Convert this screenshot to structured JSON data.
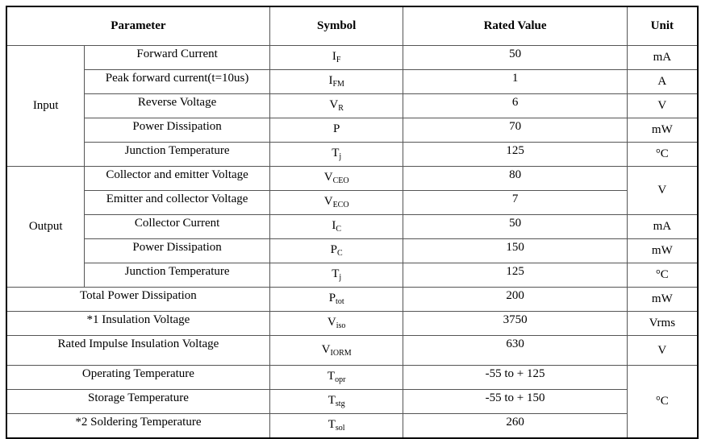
{
  "headers": {
    "parameter": "Parameter",
    "symbol": "Symbol",
    "rated_value": "Rated Value",
    "unit": "Unit"
  },
  "groups": {
    "input": "Input",
    "output": "Output"
  },
  "rows": [
    {
      "param": "Forward Current",
      "sym": "I",
      "sub": "F",
      "value": "50",
      "unit": "mA"
    },
    {
      "param": "Peak forward current(t=10us)",
      "sym": "I",
      "sub": "FM",
      "value": "1",
      "unit": "A"
    },
    {
      "param": "Reverse Voltage",
      "sym": "V",
      "sub": "R",
      "value": "6",
      "unit": "V"
    },
    {
      "param": "Power Dissipation",
      "sym": "P",
      "sub": "",
      "value": "70",
      "unit": "mW"
    },
    {
      "param": "Junction Temperature",
      "sym": "T",
      "sub": "j",
      "value": "125",
      "unit": "°C"
    },
    {
      "param": "Collector and emitter Voltage",
      "sym": "V",
      "sub": "CEO",
      "value": "80",
      "unit": "V"
    },
    {
      "param": "Emitter and collector Voltage",
      "sym": "V",
      "sub": "ECO",
      "value": "7",
      "unit": ""
    },
    {
      "param": "Collector Current",
      "sym": "I",
      "sub": "C",
      "value": "50",
      "unit": "mA"
    },
    {
      "param": "Power Dissipation",
      "sym": "P",
      "sub": "C",
      "value": "150",
      "unit": "mW"
    },
    {
      "param": "Junction Temperature",
      "sym": "T",
      "sub": "j",
      "value": "125",
      "unit": "°C"
    },
    {
      "param": "Total Power Dissipation",
      "sym": "P",
      "sub": "tot",
      "value": "200",
      "unit": "mW"
    },
    {
      "param": "*1 Insulation Voltage",
      "sym": "V",
      "sub": "iso",
      "value": "3750",
      "unit": "Vrms"
    },
    {
      "param": "Rated Impulse Insulation Voltage",
      "sym": "V",
      "sub": "IORM",
      "value": "630",
      "unit": "V"
    },
    {
      "param": "Operating Temperature",
      "sym": "T",
      "sub": "opr",
      "value": "-55 to + 125",
      "unit": "°C"
    },
    {
      "param": "Storage Temperature",
      "sym": "T",
      "sub": "stg",
      "value": "-55 to + 150",
      "unit": ""
    },
    {
      "param": "*2 Soldering Temperature",
      "sym": "T",
      "sub": "sol",
      "value": "260",
      "unit": ""
    }
  ]
}
